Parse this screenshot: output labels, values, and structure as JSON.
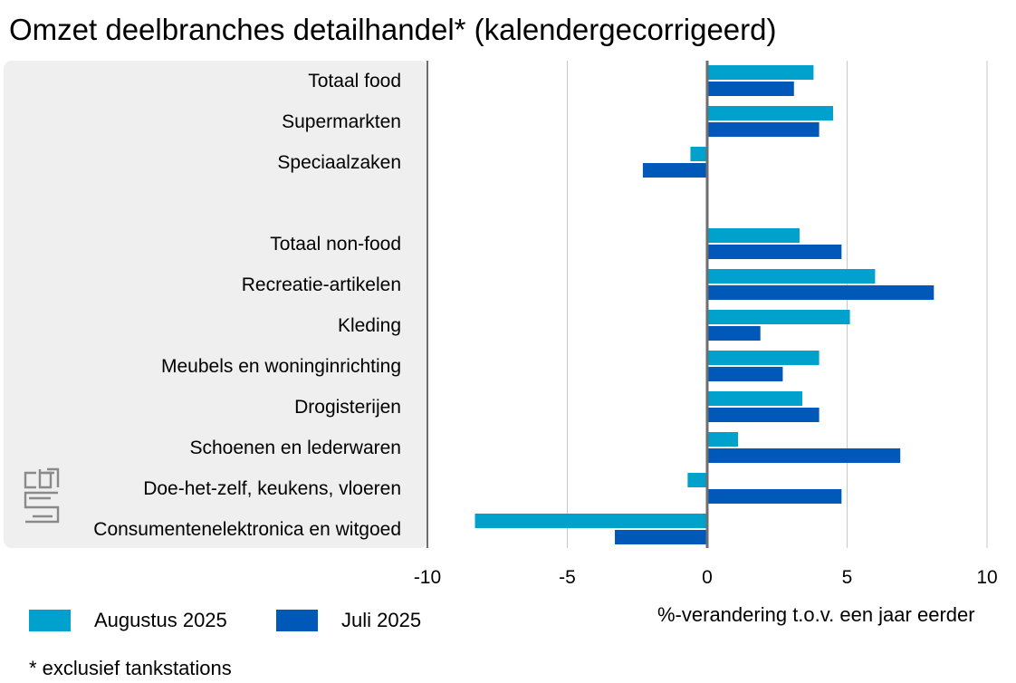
{
  "title": "Omzet deelbranches detailhandel* (kalendergecorrigeerd)",
  "footnote": "* exclusief tankstations",
  "chart_data": {
    "type": "bar",
    "orientation": "horizontal",
    "categories": [
      "Totaal food",
      "Supermarkten",
      "Speciaalzaken",
      "",
      "Totaal non-food",
      "Recreatie-artikelen",
      "Kleding",
      "Meubels en woninginrichting",
      "Drogisterijen",
      "Schoenen en lederwaren",
      "Doe-het-zelf, keukens, vloeren",
      "Consumentenelektronica en witgoed"
    ],
    "series": [
      {
        "name": "Augustus 2025",
        "color": "#00a1cd",
        "values": [
          3.8,
          4.5,
          -0.6,
          null,
          3.3,
          6.0,
          5.1,
          4.0,
          3.4,
          1.1,
          -0.7,
          -8.3
        ]
      },
      {
        "name": "Juli 2025",
        "color": "#0058b8",
        "values": [
          3.1,
          4.0,
          -2.3,
          null,
          4.8,
          8.1,
          1.9,
          2.7,
          4.0,
          6.9,
          4.8,
          -3.3
        ]
      }
    ],
    "xlabel": "%-verandering t.o.v. een jaar eerder",
    "xlim": [
      -10,
      10
    ],
    "xticks": [
      -10,
      -5,
      0,
      5,
      10
    ],
    "xtick_labels": [
      "-10",
      "-5",
      "0",
      "5",
      "10"
    ],
    "grid": true,
    "legend": "bottom-left"
  },
  "colors": {
    "panel_background": "#efefef",
    "gridline": "#c8c8c8",
    "zero_line": "#6e6e6e",
    "logo": "#8a8a8a"
  },
  "logo_icon": "cbs-logo-icon"
}
